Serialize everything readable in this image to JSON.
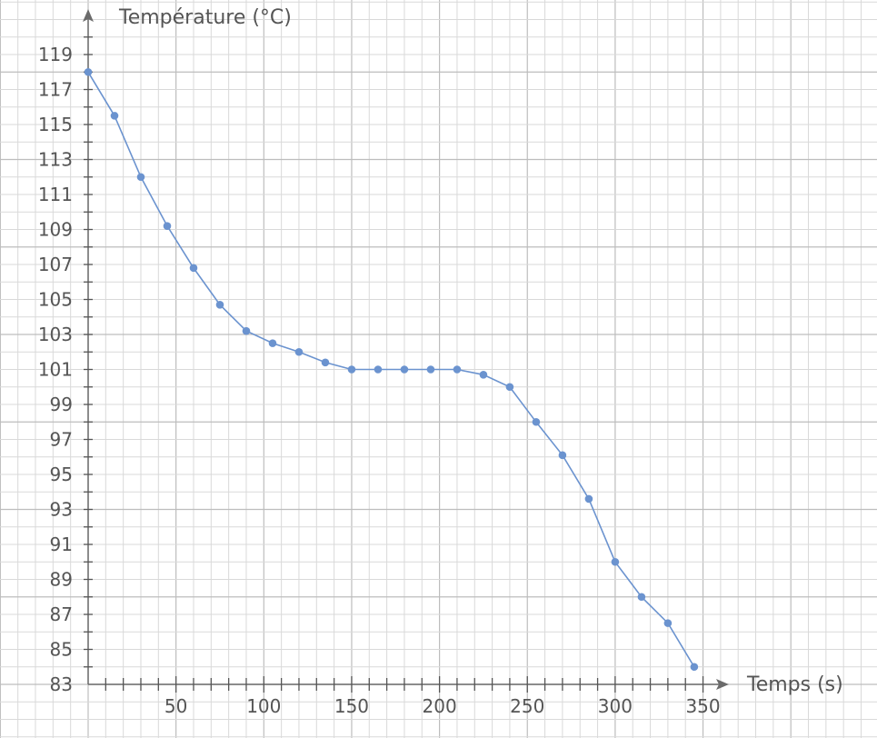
{
  "chart_data": {
    "type": "line",
    "title": "",
    "xlabel": "Temps (s)",
    "ylabel": "Température (°C)",
    "xlim": [
      0,
      360
    ],
    "ylim": [
      83,
      120
    ],
    "x_ticks": [
      50,
      100,
      150,
      200,
      250,
      300,
      350
    ],
    "y_ticks": [
      83,
      85,
      87,
      89,
      91,
      93,
      95,
      97,
      99,
      101,
      103,
      105,
      107,
      109,
      111,
      113,
      115,
      117,
      119
    ],
    "grid": true,
    "legend": "none",
    "series": [
      {
        "color": "#6b93cf",
        "x": [
          0,
          15,
          30,
          45,
          60,
          75,
          90,
          105,
          120,
          135,
          150,
          165,
          180,
          195,
          210,
          225,
          240,
          255,
          270,
          285,
          300,
          315,
          330,
          345
        ],
        "y": [
          118,
          115.5,
          112,
          109.2,
          106.8,
          104.7,
          103.2,
          102.5,
          102,
          101.4,
          101,
          101,
          101,
          101,
          101,
          100.7,
          100,
          98,
          96.1,
          93.6,
          90,
          88,
          86.5,
          84
        ]
      }
    ]
  }
}
